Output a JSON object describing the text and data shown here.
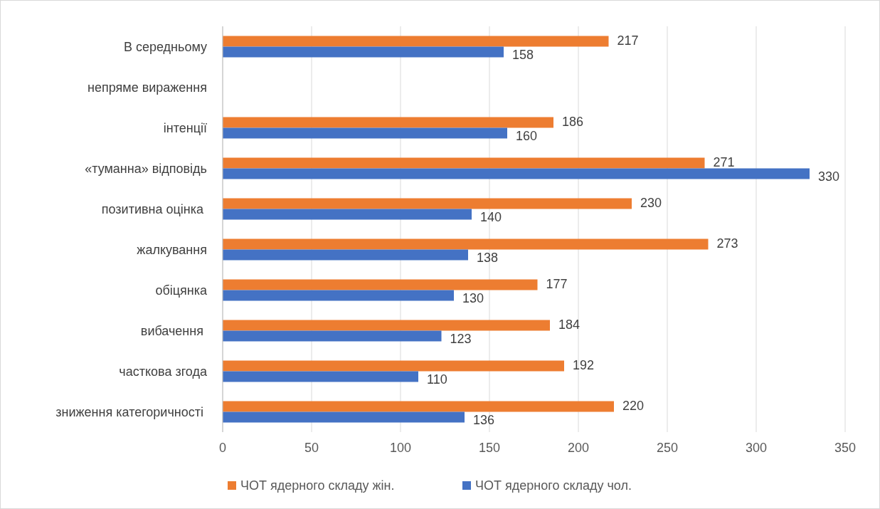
{
  "chart_data": {
    "type": "bar",
    "orientation": "horizontal",
    "categories": [
      "В середньому",
      "непряме вираження",
      "інтенції",
      "«туманна» відповідь",
      "позитивна оцінка ",
      "жалкування",
      "обіцянка",
      "вибачення ",
      "часткова згода",
      "зниження категоричності "
    ],
    "series": [
      {
        "name": "ЧОТ ядерного складу жін.",
        "color": "#ed7d31",
        "values": [
          217,
          null,
          186,
          271,
          230,
          273,
          177,
          184,
          192,
          220
        ]
      },
      {
        "name": "ЧОТ ядерного складу чол.",
        "color": "#4472c4",
        "values": [
          158,
          null,
          160,
          330,
          140,
          138,
          130,
          123,
          110,
          136
        ]
      }
    ],
    "xlim": [
      0,
      350
    ],
    "xticks": [
      0,
      50,
      100,
      150,
      200,
      250,
      300,
      350
    ],
    "grid": "x",
    "legend": "bottom",
    "data_labels": true
  }
}
